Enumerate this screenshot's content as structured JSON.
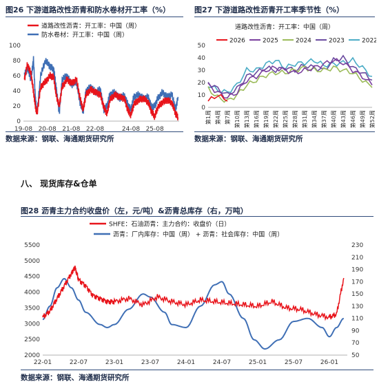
{
  "fig26": {
    "title": "图26  下游道路改性沥青和防水卷材开工率（%）",
    "source": "数据来源：钢联、海通期货研究所"
  },
  "fig27": {
    "title": "图27  下游道路改性沥青开工率季节性（%）",
    "source": "数据来源：钢联、海通期货研究所"
  },
  "section": {
    "title": "八、   现货库存&仓单"
  },
  "fig28": {
    "title": "图28  沥青主力合约收盘价（左，元/吨）&沥青总库存（右，万吨）",
    "source": "数据来源：钢联、海通期货研究所"
  },
  "chart_data": [
    {
      "id": "fig26",
      "type": "line",
      "legend": [
        "道路改性沥青：开工率：中国（周）",
        "防水卷材：开工率：中国（周）"
      ],
      "series": [
        {
          "name": "道路改性沥青：开工率：中国（周）",
          "color": "#e8141b",
          "x": [
            2019.62,
            2019.75,
            2019.9,
            2020.0,
            2020.08,
            2020.15,
            2020.3,
            2020.5,
            2020.7,
            2020.85,
            2020.95,
            2021.08,
            2021.2,
            2021.4,
            2021.6,
            2021.8,
            2021.95,
            2022.08,
            2022.2,
            2022.4,
            2022.6,
            2022.8,
            2022.95,
            2023.08,
            2023.2,
            2023.4,
            2023.6,
            2023.8,
            2023.95,
            2024.08,
            2024.2,
            2024.4,
            2024.6,
            2024.8,
            2024.95,
            2025.08,
            2025.2,
            2025.4,
            2025.6,
            2025.8,
            2025.95,
            2026.05
          ],
          "values": [
            55,
            75,
            62,
            40,
            20,
            10,
            45,
            52,
            60,
            58,
            35,
            20,
            45,
            55,
            50,
            55,
            30,
            15,
            35,
            42,
            38,
            35,
            18,
            10,
            28,
            35,
            32,
            30,
            15,
            8,
            22,
            28,
            30,
            25,
            12,
            6,
            18,
            25,
            28,
            24,
            10,
            5
          ]
        },
        {
          "name": "防水卷材：开工率：中国（周）",
          "color": "#3f6fb5",
          "x": [
            2019.62,
            2019.75,
            2019.9,
            2020.0,
            2020.08,
            2020.15,
            2020.3,
            2020.5,
            2020.7,
            2020.85,
            2020.95,
            2021.08,
            2021.2,
            2021.4,
            2021.6,
            2021.8,
            2021.95,
            2022.08,
            2022.2,
            2022.4,
            2022.6,
            2022.8,
            2022.95,
            2023.08,
            2023.2,
            2023.4,
            2023.6,
            2023.8,
            2023.95,
            2024.08,
            2024.2,
            2024.4,
            2024.6,
            2024.8,
            2024.95,
            2025.08,
            2025.2,
            2025.4,
            2025.6,
            2025.8,
            2025.95,
            2026.05
          ],
          "values": [
            60,
            70,
            55,
            82,
            30,
            10,
            60,
            80,
            72,
            68,
            45,
            10,
            55,
            60,
            48,
            52,
            25,
            12,
            40,
            45,
            38,
            42,
            15,
            20,
            35,
            38,
            30,
            34,
            22,
            15,
            32,
            35,
            30,
            32,
            18,
            20,
            30,
            38,
            32,
            35,
            15,
            32
          ]
        }
      ],
      "xticks": [
        "19-08",
        "20-08",
        "21-08",
        "22-08",
        "24-08",
        "25-08"
      ],
      "xtick_vals": [
        2019.58,
        2020.58,
        2021.58,
        2022.58,
        2024.08,
        2025.08
      ],
      "xlim": [
        2019.58,
        2026.1
      ],
      "yticks": [
        0,
        20,
        40,
        60,
        80,
        100
      ],
      "ylim": [
        0,
        100
      ]
    },
    {
      "id": "fig27",
      "type": "line",
      "title": "道路改性沥青：开工率：中国（周）",
      "categories": [
        "第1周",
        "第4周",
        "第7周",
        "第10周",
        "第13周",
        "第16周",
        "第19周",
        "第22周",
        "第25周",
        "第28周",
        "第31周",
        "第34周",
        "第37周",
        "第40周",
        "第43周",
        "第46周",
        "第49周",
        "第52周"
      ],
      "series": [
        {
          "name": "2026",
          "color": "#e8141b",
          "values": [
            5,
            10,
            5,
            null,
            null,
            null,
            null,
            null,
            null,
            null,
            null,
            null,
            null,
            null,
            null,
            null,
            null,
            null
          ]
        },
        {
          "name": "2025",
          "color": "#7a3f9e",
          "values": [
            18,
            12,
            8,
            12,
            22,
            25,
            30,
            32,
            30,
            28,
            30,
            32,
            35,
            38,
            36,
            30,
            25,
            18
          ]
        },
        {
          "name": "2024",
          "color": "#9bbb59",
          "values": [
            15,
            8,
            5,
            10,
            18,
            22,
            26,
            28,
            28,
            30,
            32,
            30,
            30,
            32,
            30,
            28,
            22,
            16
          ]
        },
        {
          "name": "2023",
          "color": "#6b4ba0",
          "values": [
            20,
            15,
            10,
            15,
            25,
            28,
            32,
            30,
            32,
            30,
            34,
            32,
            30,
            38,
            40,
            32,
            28,
            22
          ]
        },
        {
          "name": "2022",
          "color": "#4bacc6",
          "values": [
            18,
            14,
            12,
            18,
            30,
            30,
            35,
            38,
            32,
            35,
            36,
            38,
            34,
            35,
            36,
            38,
            32,
            25
          ]
        }
      ],
      "yticks": [
        0,
        10,
        20,
        30,
        40,
        50
      ],
      "ylim": [
        0,
        50
      ]
    },
    {
      "id": "fig28",
      "type": "line",
      "legend": [
        "SHFE：石油沥青：主力合约：收盘价（日）",
        "沥青：厂内库存：中国（周） + 沥青：社会库存：中国（周）"
      ],
      "series": [
        {
          "name": "SHFE：石油沥青：主力合约：收盘价（日）",
          "color": "#e8141b",
          "axis": "left",
          "x": [
            2022.0,
            2022.1,
            2022.2,
            2022.3,
            2022.4,
            2022.45,
            2022.5,
            2022.6,
            2022.7,
            2022.8,
            2022.9,
            2023.0,
            2023.2,
            2023.4,
            2023.6,
            2023.8,
            2024.0,
            2024.2,
            2024.4,
            2024.6,
            2024.8,
            2025.0,
            2025.2,
            2025.4,
            2025.6,
            2025.8,
            2026.0,
            2026.1,
            2026.2
          ],
          "values": [
            3200,
            3400,
            3800,
            4200,
            4600,
            4800,
            4400,
            4200,
            3900,
            3800,
            3700,
            3700,
            3800,
            3600,
            3850,
            3700,
            3600,
            3750,
            3700,
            3650,
            3600,
            3550,
            3700,
            3500,
            3450,
            3300,
            3200,
            3300,
            4450
          ]
        },
        {
          "name": "沥青：厂内库存：中国（周） + 沥青：社会库存：中国（周）",
          "color": "#3f6fb5",
          "axis": "right",
          "x": [
            2022.0,
            2022.1,
            2022.2,
            2022.3,
            2022.4,
            2022.5,
            2022.6,
            2022.8,
            2022.9,
            2023.0,
            2023.2,
            2023.4,
            2023.5,
            2023.7,
            2023.8,
            2024.0,
            2024.2,
            2024.4,
            2024.5,
            2024.6,
            2024.8,
            2024.95,
            2025.1,
            2025.3,
            2025.5,
            2025.7,
            2025.9,
            2026.0,
            2026.1,
            2026.2
          ],
          "values": [
            108,
            130,
            160,
            175,
            160,
            140,
            120,
            100,
            95,
            100,
            125,
            150,
            145,
            120,
            100,
            95,
            130,
            165,
            170,
            150,
            110,
            75,
            60,
            75,
            105,
            110,
            95,
            80,
            95,
            110
          ]
        }
      ],
      "xticks": [
        "22-01",
        "22-07",
        "23-01",
        "23-07",
        "24-01",
        "24-07",
        "25-01",
        "25-07",
        "26-01"
      ],
      "xtick_vals": [
        2022.0,
        2022.5,
        2023.0,
        2023.5,
        2024.0,
        2024.5,
        2025.0,
        2025.5,
        2026.0
      ],
      "xlim": [
        2022.0,
        2026.25
      ],
      "left_yticks": [
        2000,
        2500,
        3000,
        3500,
        4000,
        4500,
        5000,
        5500
      ],
      "left_ylim": [
        2000,
        5500
      ],
      "right_yticks": [
        50,
        70,
        90,
        110,
        130,
        150,
        170,
        190,
        210,
        230
      ],
      "right_ylim": [
        50,
        230
      ]
    }
  ]
}
